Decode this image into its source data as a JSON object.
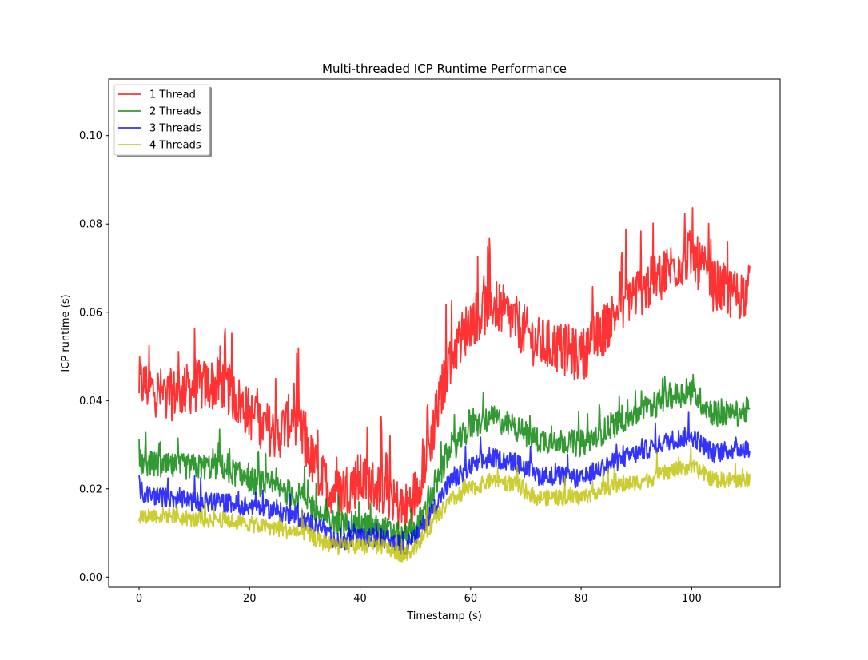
{
  "chart_data": {
    "type": "line",
    "title": "Multi-threaded ICP Runtime Performance",
    "xlabel": "Timestamp (s)",
    "ylabel": "ICP runtime (s)",
    "xlim": [
      -5.5,
      116
    ],
    "ylim": [
      -0.0023,
      0.1128
    ],
    "xticks": [
      0,
      20,
      40,
      60,
      80,
      100
    ],
    "yticks": [
      0.0,
      0.02,
      0.04,
      0.06,
      0.08,
      0.1
    ],
    "xtick_labels": [
      "0",
      "20",
      "40",
      "60",
      "80",
      "100"
    ],
    "ytick_labels": [
      "0.00",
      "0.02",
      "0.04",
      "0.06",
      "0.08",
      "0.10"
    ],
    "grid": false,
    "legend_position": "upper-left",
    "x_range": [
      0,
      110.5
    ],
    "series": [
      {
        "name": "1 Thread",
        "color": "#ff0000",
        "noise_amplitude": 0.006,
        "keypoints": [
          [
            0,
            0.044
          ],
          [
            5,
            0.041
          ],
          [
            10,
            0.043
          ],
          [
            15,
            0.044
          ],
          [
            20,
            0.037
          ],
          [
            25,
            0.032
          ],
          [
            28,
            0.037
          ],
          [
            30,
            0.03
          ],
          [
            33,
            0.022
          ],
          [
            36,
            0.019
          ],
          [
            40,
            0.022
          ],
          [
            44,
            0.02
          ],
          [
            48,
            0.015
          ],
          [
            50,
            0.019
          ],
          [
            53,
            0.032
          ],
          [
            56,
            0.049
          ],
          [
            60,
            0.058
          ],
          [
            64,
            0.062
          ],
          [
            68,
            0.058
          ],
          [
            72,
            0.053
          ],
          [
            76,
            0.052
          ],
          [
            80,
            0.05
          ],
          [
            84,
            0.056
          ],
          [
            88,
            0.063
          ],
          [
            92,
            0.066
          ],
          [
            96,
            0.07
          ],
          [
            100,
            0.073
          ],
          [
            104,
            0.066
          ],
          [
            108,
            0.064
          ],
          [
            110.5,
            0.065
          ]
        ]
      },
      {
        "name": "2 Threads",
        "color": "#008000",
        "noise_amplitude": 0.003,
        "keypoints": [
          [
            0,
            0.026
          ],
          [
            5,
            0.025
          ],
          [
            10,
            0.025
          ],
          [
            15,
            0.025
          ],
          [
            20,
            0.022
          ],
          [
            25,
            0.02
          ],
          [
            30,
            0.018
          ],
          [
            33,
            0.014
          ],
          [
            36,
            0.012
          ],
          [
            40,
            0.012
          ],
          [
            44,
            0.011
          ],
          [
            48,
            0.009
          ],
          [
            50,
            0.011
          ],
          [
            53,
            0.018
          ],
          [
            56,
            0.028
          ],
          [
            60,
            0.034
          ],
          [
            64,
            0.036
          ],
          [
            68,
            0.034
          ],
          [
            72,
            0.031
          ],
          [
            76,
            0.031
          ],
          [
            80,
            0.03
          ],
          [
            84,
            0.033
          ],
          [
            88,
            0.036
          ],
          [
            92,
            0.038
          ],
          [
            96,
            0.041
          ],
          [
            100,
            0.042
          ],
          [
            104,
            0.037
          ],
          [
            108,
            0.037
          ],
          [
            110.5,
            0.038
          ]
        ]
      },
      {
        "name": "3 Threads",
        "color": "#0000ff",
        "noise_amplitude": 0.0022,
        "keypoints": [
          [
            0,
            0.019
          ],
          [
            5,
            0.018
          ],
          [
            10,
            0.017
          ],
          [
            15,
            0.017
          ],
          [
            20,
            0.016
          ],
          [
            25,
            0.015
          ],
          [
            30,
            0.013
          ],
          [
            33,
            0.011
          ],
          [
            36,
            0.008
          ],
          [
            40,
            0.009
          ],
          [
            44,
            0.009
          ],
          [
            48,
            0.007
          ],
          [
            50,
            0.009
          ],
          [
            53,
            0.015
          ],
          [
            56,
            0.021
          ],
          [
            60,
            0.025
          ],
          [
            64,
            0.027
          ],
          [
            68,
            0.026
          ],
          [
            72,
            0.023
          ],
          [
            76,
            0.023
          ],
          [
            80,
            0.022
          ],
          [
            84,
            0.025
          ],
          [
            88,
            0.027
          ],
          [
            92,
            0.029
          ],
          [
            96,
            0.031
          ],
          [
            100,
            0.032
          ],
          [
            104,
            0.028
          ],
          [
            108,
            0.029
          ],
          [
            110.5,
            0.029
          ]
        ]
      },
      {
        "name": "4 Threads",
        "color": "#bfbf00",
        "noise_amplitude": 0.0018,
        "keypoints": [
          [
            0,
            0.014
          ],
          [
            5,
            0.014
          ],
          [
            10,
            0.013
          ],
          [
            15,
            0.013
          ],
          [
            20,
            0.012
          ],
          [
            25,
            0.011
          ],
          [
            30,
            0.01
          ],
          [
            33,
            0.008
          ],
          [
            36,
            0.007
          ],
          [
            40,
            0.007
          ],
          [
            44,
            0.007
          ],
          [
            48,
            0.005
          ],
          [
            50,
            0.007
          ],
          [
            53,
            0.012
          ],
          [
            56,
            0.017
          ],
          [
            60,
            0.02
          ],
          [
            64,
            0.022
          ],
          [
            68,
            0.021
          ],
          [
            72,
            0.018
          ],
          [
            76,
            0.018
          ],
          [
            80,
            0.018
          ],
          [
            84,
            0.02
          ],
          [
            88,
            0.021
          ],
          [
            92,
            0.022
          ],
          [
            96,
            0.024
          ],
          [
            100,
            0.025
          ],
          [
            104,
            0.022
          ],
          [
            108,
            0.022
          ],
          [
            110.5,
            0.022
          ]
        ]
      }
    ]
  }
}
